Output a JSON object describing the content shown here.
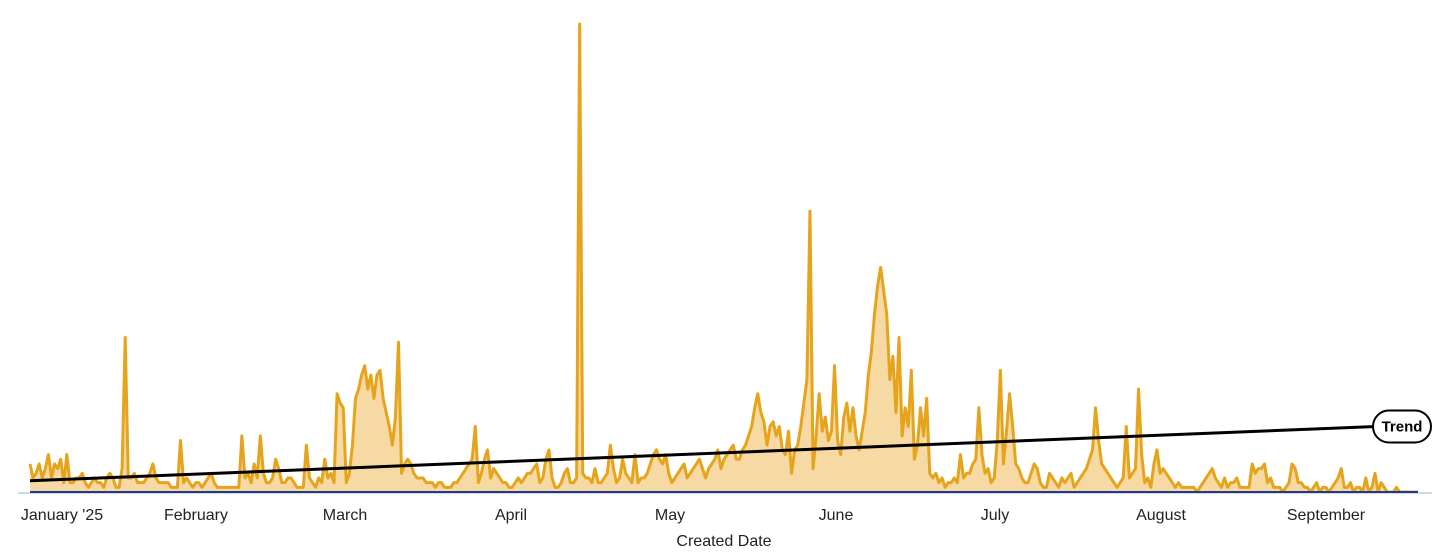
{
  "chart_data": {
    "type": "area",
    "xlabel": "Created Date",
    "ylabel": "",
    "x_ticks": [
      "January '25",
      "February",
      "March",
      "April",
      "May",
      "June",
      "July",
      "August",
      "September"
    ],
    "ylim": [
      0,
      100
    ],
    "grid": false,
    "legend": "none",
    "colors": {
      "area_fill": "#f6d9a3",
      "area_line": "#e6a41c",
      "trend_line": "#000000",
      "baseline": "#9bb4d6",
      "secondary_line": "#1f3a8a"
    },
    "series": [
      {
        "values": [
          6,
          3,
          4,
          6,
          3,
          5,
          8,
          3,
          6,
          5,
          7,
          2,
          8,
          2,
          2,
          3,
          3,
          4,
          2,
          1,
          2,
          3,
          2,
          2,
          1,
          3,
          4,
          3,
          1,
          1,
          5,
          33,
          3,
          3,
          4,
          2,
          2,
          2,
          3,
          4,
          6,
          3,
          2,
          2,
          2,
          2,
          1,
          1,
          1,
          11,
          2,
          3,
          2,
          1,
          2,
          2,
          1,
          2,
          3,
          4,
          2,
          1,
          1,
          1,
          1,
          1,
          1,
          1,
          1,
          12,
          3,
          4,
          2,
          6,
          3,
          12,
          4,
          2,
          2,
          3,
          7,
          5,
          2,
          2,
          3,
          3,
          2,
          1,
          1,
          1,
          10,
          3,
          2,
          1,
          3,
          2,
          7,
          3,
          4,
          2,
          21,
          19,
          18,
          2,
          4,
          10,
          20,
          22,
          25,
          27,
          22,
          25,
          20,
          25,
          26,
          20,
          17,
          14,
          10,
          16,
          32,
          4,
          6,
          7,
          6,
          4,
          3,
          3,
          3,
          2,
          2,
          2,
          1,
          2,
          2,
          1,
          1,
          1,
          2,
          2,
          3,
          4,
          5,
          6,
          7,
          14,
          2,
          4,
          7,
          9,
          3,
          5,
          4,
          3,
          2,
          2,
          1,
          1,
          2,
          3,
          2,
          3,
          4,
          4,
          5,
          6,
          2,
          3,
          7,
          9,
          3,
          1,
          1,
          2,
          4,
          5,
          2,
          2,
          3,
          100,
          4,
          3,
          3,
          2,
          5,
          2,
          2,
          3,
          4,
          10,
          5,
          2,
          3,
          7,
          4,
          3,
          2,
          8,
          2,
          3,
          3,
          4,
          6,
          8,
          9,
          7,
          6,
          8,
          4,
          2,
          3,
          4,
          5,
          6,
          3,
          4,
          5,
          6,
          7,
          5,
          3,
          5,
          6,
          7,
          9,
          5,
          7,
          8,
          9,
          10,
          7,
          7,
          9,
          10,
          12,
          14,
          18,
          21,
          17,
          15,
          10,
          14,
          15,
          12,
          14,
          9,
          8,
          13,
          4,
          9,
          10,
          14,
          19,
          24,
          60,
          5,
          12,
          21,
          13,
          16,
          11,
          13,
          27,
          11,
          8,
          16,
          19,
          13,
          18,
          12,
          9,
          13,
          17,
          25,
          30,
          38,
          44,
          48,
          43,
          38,
          24,
          29,
          17,
          33,
          12,
          18,
          14,
          26,
          7,
          10,
          18,
          12,
          20,
          4,
          3,
          4,
          2,
          3,
          1,
          2,
          2,
          3,
          2,
          8,
          3,
          4,
          4,
          6,
          7,
          18,
          8,
          4,
          5,
          2,
          3,
          11,
          26,
          6,
          13,
          21,
          14,
          6,
          5,
          3,
          2,
          2,
          4,
          6,
          5,
          2,
          1,
          1,
          4,
          3,
          2,
          1,
          3,
          2,
          3,
          4,
          1,
          2,
          3,
          4,
          5,
          7,
          9,
          18,
          11,
          6,
          5,
          4,
          3,
          2,
          1,
          2,
          3,
          14,
          3,
          4,
          5,
          22,
          8,
          2,
          3,
          1,
          6,
          9,
          4,
          5,
          4,
          3,
          2,
          1,
          2,
          1,
          1,
          1,
          1,
          1,
          0,
          1,
          2,
          3,
          4,
          5,
          3,
          2,
          1,
          3,
          1,
          2,
          2,
          3,
          1,
          1,
          1,
          1,
          6,
          4,
          5,
          5,
          6,
          2,
          3,
          1,
          1,
          1,
          0,
          1,
          2,
          6,
          5,
          2,
          2,
          1,
          1,
          0,
          1,
          2,
          0,
          1,
          1,
          0,
          1,
          2,
          3,
          5,
          1,
          1,
          2,
          0,
          1,
          1,
          0,
          3,
          0,
          1,
          4,
          0,
          2,
          1,
          0,
          0,
          0,
          1,
          0,
          0,
          0,
          0,
          0,
          0,
          0
        ]
      }
    ],
    "trend": {
      "label": "Trend",
      "start": 2.4,
      "end": 14.0
    }
  }
}
